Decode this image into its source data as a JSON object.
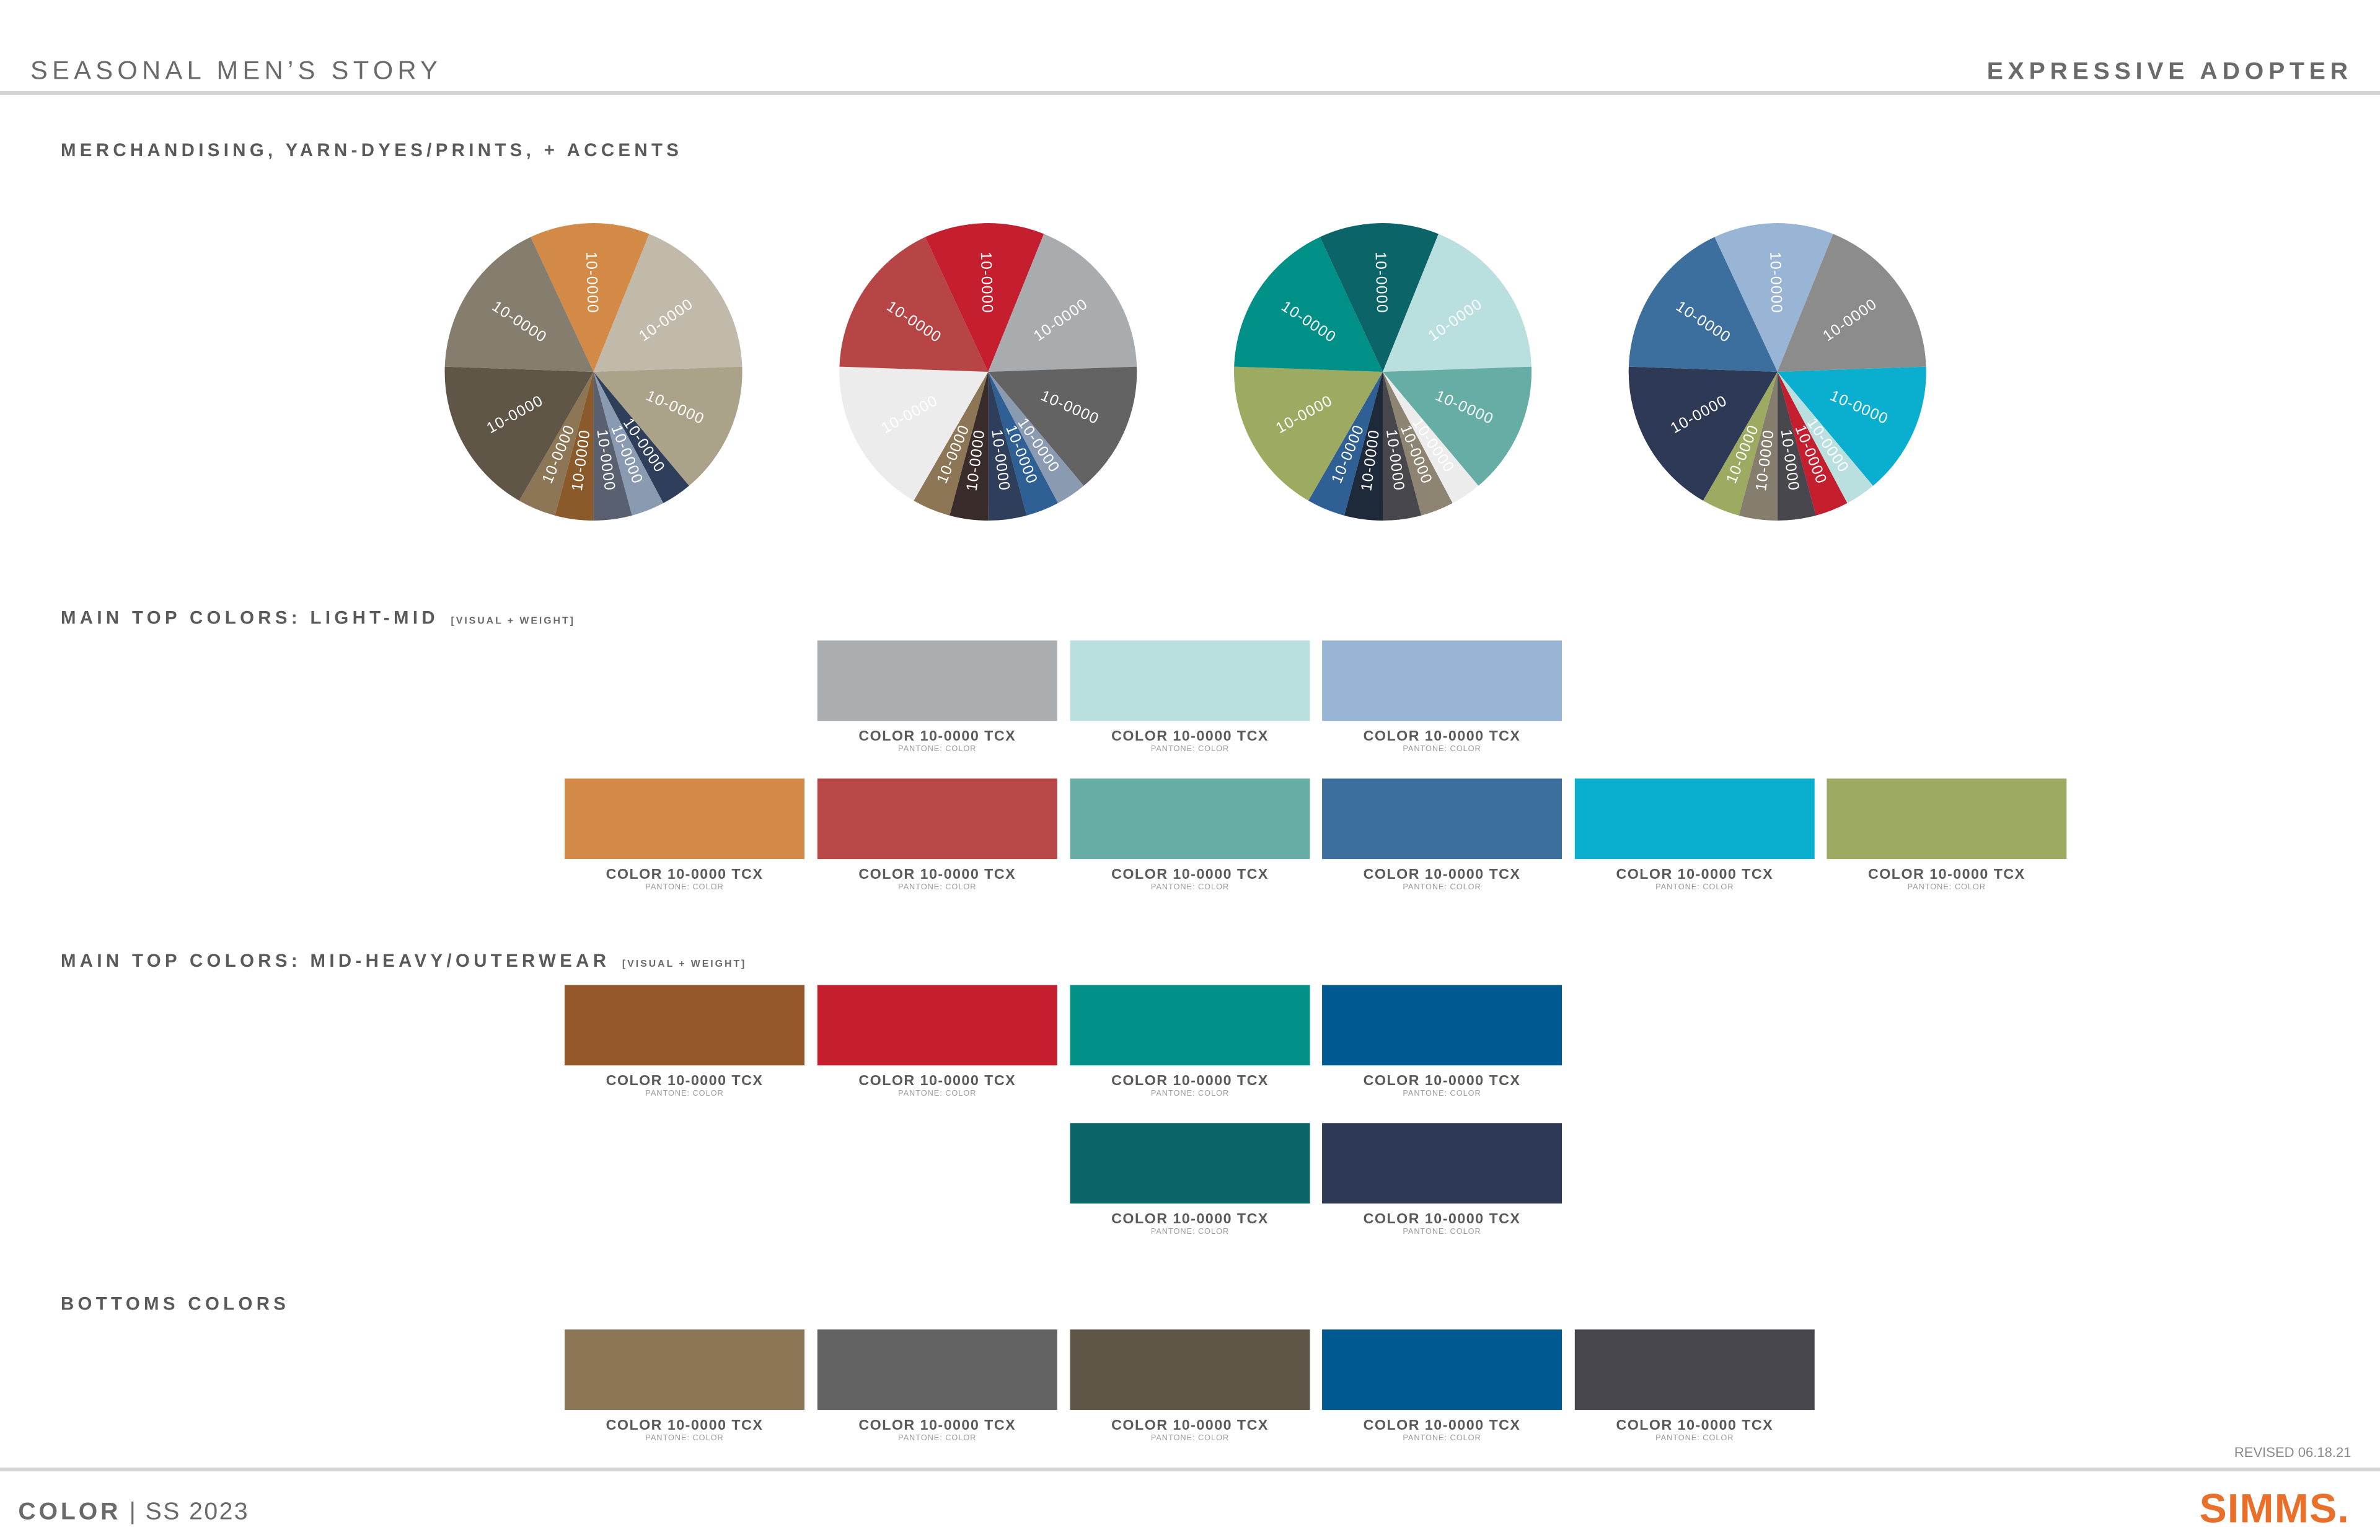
{
  "header": {
    "title": "SEASONAL MEN’S STORY",
    "segment": "EXPRESSIVE ADOPTER"
  },
  "wheels_section": {
    "title": "MERCHANDISING, YARN-DYES/PRINTS, + ACCENTS",
    "wheels": [
      {
        "segments": [
          {
            "label": "10-0000",
            "color": "#d48a47"
          },
          {
            "label": "10-0000",
            "color": "#c1b9a9"
          },
          {
            "label": "10-0000",
            "color": "#aba28a"
          },
          {
            "label": "10-0000",
            "color": "#2f3e5a"
          },
          {
            "label": "10-0000",
            "color": "#8a9ab0"
          },
          {
            "label": "10-0000",
            "color": "#596070"
          },
          {
            "label": "10-0000",
            "color": "#8b5a2b"
          },
          {
            "label": "10-0000",
            "color": "#8c7655"
          },
          {
            "label": "10-0000",
            "color": "#5f5648"
          },
          {
            "label": "10-0000",
            "color": "#857d6e"
          }
        ]
      },
      {
        "segments": [
          {
            "label": "10-0000",
            "color": "#c41e2f"
          },
          {
            "label": "10-0000",
            "color": "#a9acaf"
          },
          {
            "label": "10-0000",
            "color": "#636363"
          },
          {
            "label": "10-0000",
            "color": "#8a9ab0"
          },
          {
            "label": "10-0000",
            "color": "#2e5f95"
          },
          {
            "label": "10-0000",
            "color": "#2f3e5a"
          },
          {
            "label": "10-0000",
            "color": "#3a2c2a"
          },
          {
            "label": "10-0000",
            "color": "#8c7655"
          },
          {
            "label": "10-0000",
            "color": "#ececec"
          },
          {
            "label": "10-0000",
            "color": "#b84545"
          }
        ]
      },
      {
        "segments": [
          {
            "label": "10-0000",
            "color": "#0a6468"
          },
          {
            "label": "10-0000",
            "color": "#b9e0df"
          },
          {
            "label": "10-0000",
            "color": "#66ada6"
          },
          {
            "label": "10-0000",
            "color": "#ececec"
          },
          {
            "label": "10-0000",
            "color": "#8d8472"
          },
          {
            "label": "10-0000",
            "color": "#47474d"
          },
          {
            "label": "10-0000",
            "color": "#1e2a3a"
          },
          {
            "label": "10-0000",
            "color": "#2e5f95"
          },
          {
            "label": "10-0000",
            "color": "#9daa61"
          },
          {
            "label": "10-0000",
            "color": "#009088"
          }
        ]
      },
      {
        "segments": [
          {
            "label": "10-0000",
            "color": "#99b5d6"
          },
          {
            "label": "10-0000",
            "color": "#8c8c8c"
          },
          {
            "label": "10-0000",
            "color": "#0aafd0"
          },
          {
            "label": "10-0000",
            "color": "#b9e0df"
          },
          {
            "label": "10-0000",
            "color": "#c41e2f"
          },
          {
            "label": "10-0000",
            "color": "#47474d"
          },
          {
            "label": "10-0000",
            "color": "#857d6e"
          },
          {
            "label": "10-0000",
            "color": "#9daa61"
          },
          {
            "label": "10-0000",
            "color": "#2e3a55"
          },
          {
            "label": "10-0000",
            "color": "#3d6f9e"
          }
        ]
      }
    ]
  },
  "swatch_sections": [
    {
      "title": "MAIN TOP COLORS: LIGHT-MID",
      "note": "[VISUAL + WEIGHT]",
      "rows": [
        [
          {
            "label": "COLOR 10-0000 TCX",
            "sublabel": "PANTONE: COLOR",
            "color": "#abaeb0"
          },
          {
            "label": "COLOR 10-0000 TCX",
            "sublabel": "PANTONE: COLOR",
            "color": "#b9e0df"
          },
          {
            "label": "COLOR 10-0000 TCX",
            "sublabel": "PANTONE: COLOR",
            "color": "#99b5d6"
          }
        ],
        [
          {
            "label": "COLOR 10-0000 TCX",
            "sublabel": "PANTONE: COLOR",
            "color": "#d48a47"
          },
          {
            "label": "COLOR 10-0000 TCX",
            "sublabel": "PANTONE: COLOR",
            "color": "#b84848"
          },
          {
            "label": "COLOR 10-0000 TCX",
            "sublabel": "PANTONE: COLOR",
            "color": "#66ada6"
          },
          {
            "label": "COLOR 10-0000 TCX",
            "sublabel": "PANTONE: COLOR",
            "color": "#3d6f9e"
          },
          {
            "label": "COLOR 10-0000 TCX",
            "sublabel": "PANTONE: COLOR",
            "color": "#0aafd0"
          },
          {
            "label": "COLOR 10-0000 TCX",
            "sublabel": "PANTONE: COLOR",
            "color": "#9daa61"
          }
        ]
      ]
    },
    {
      "title": "MAIN TOP COLORS: MID-HEAVY/OUTERWEAR",
      "note": "[VISUAL + WEIGHT]",
      "rows": [
        [
          {
            "label": "COLOR 10-0000 TCX",
            "sublabel": "PANTONE: COLOR",
            "color": "#955629"
          },
          {
            "label": "COLOR 10-0000 TCX",
            "sublabel": "PANTONE: COLOR",
            "color": "#c41e2f"
          },
          {
            "label": "COLOR 10-0000 TCX",
            "sublabel": "PANTONE: COLOR",
            "color": "#009088"
          },
          {
            "label": "COLOR 10-0000 TCX",
            "sublabel": "PANTONE: COLOR",
            "color": "#005990"
          }
        ],
        [
          {
            "label": "COLOR 10-0000 TCX",
            "sublabel": "PANTONE: COLOR",
            "color": "#0a6468"
          },
          {
            "label": "COLOR 10-0000 TCX",
            "sublabel": "PANTONE: COLOR",
            "color": "#2e3a55"
          }
        ]
      ]
    },
    {
      "title": "BOTTOMS COLORS",
      "rows": [
        [
          {
            "label": "COLOR 10-0000 TCX",
            "sublabel": "PANTONE: COLOR",
            "color": "#8c7655"
          },
          {
            "label": "COLOR 10-0000 TCX",
            "sublabel": "PANTONE: COLOR",
            "color": "#636363"
          },
          {
            "label": "COLOR 10-0000 TCX",
            "sublabel": "PANTONE: COLOR",
            "color": "#5f5648"
          },
          {
            "label": "COLOR 10-0000 TCX",
            "sublabel": "PANTONE: COLOR",
            "color": "#005990"
          },
          {
            "label": "COLOR 10-0000 TCX",
            "sublabel": "PANTONE: COLOR",
            "color": "#47474d"
          }
        ]
      ]
    }
  ],
  "revised": "REVISED 06.18.21",
  "footer": {
    "label": "COLOR",
    "season": "| SS 2023",
    "brand": "SIMMS."
  }
}
